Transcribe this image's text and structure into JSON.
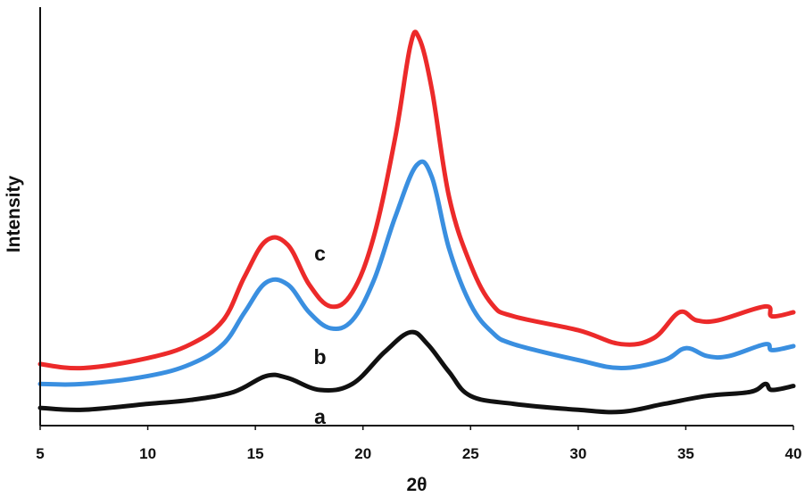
{
  "chart_data": {
    "type": "line",
    "xlabel": "2θ",
    "ylabel": "Intensity",
    "xlim": [
      5,
      40
    ],
    "ylim": [
      0,
      100
    ],
    "xticks": [
      "5",
      "10",
      "15",
      "20",
      "25",
      "30",
      "35",
      "40"
    ],
    "yticks_shown": false,
    "grid": false,
    "series": [
      {
        "name": "a",
        "color": "#111111",
        "points": [
          [
            5,
            2
          ],
          [
            7,
            1.5
          ],
          [
            10,
            3
          ],
          [
            12,
            4
          ],
          [
            14,
            6
          ],
          [
            15.5,
            10
          ],
          [
            16.5,
            9.5
          ],
          [
            18,
            6.5
          ],
          [
            19.5,
            8
          ],
          [
            21,
            16
          ],
          [
            22.2,
            21
          ],
          [
            23,
            18
          ],
          [
            24,
            11
          ],
          [
            25,
            5
          ],
          [
            27,
            3
          ],
          [
            30,
            1.5
          ],
          [
            32,
            1
          ],
          [
            34,
            3
          ],
          [
            36,
            5
          ],
          [
            38,
            6
          ],
          [
            38.7,
            8
          ],
          [
            39,
            6.5
          ],
          [
            40,
            7.5
          ]
        ]
      },
      {
        "name": "b",
        "color": "#3a8fe0",
        "points": [
          [
            5,
            8
          ],
          [
            7,
            8
          ],
          [
            10,
            10
          ],
          [
            12,
            13
          ],
          [
            13.5,
            18
          ],
          [
            14.5,
            26
          ],
          [
            15.5,
            33.5
          ],
          [
            16.5,
            33
          ],
          [
            17.5,
            26
          ],
          [
            18.5,
            22
          ],
          [
            19.5,
            24
          ],
          [
            20.5,
            34
          ],
          [
            21.5,
            50
          ],
          [
            22.5,
            63
          ],
          [
            23.2,
            60
          ],
          [
            24,
            42
          ],
          [
            25,
            28
          ],
          [
            26,
            21
          ],
          [
            27,
            18
          ],
          [
            30,
            14
          ],
          [
            32,
            12
          ],
          [
            34,
            14
          ],
          [
            35,
            17
          ],
          [
            36,
            15
          ],
          [
            37,
            15
          ],
          [
            38.7,
            18
          ],
          [
            39,
            16.5
          ],
          [
            40,
            17.5
          ]
        ]
      },
      {
        "name": "c",
        "color": "#ec2a2a",
        "points": [
          [
            5,
            13
          ],
          [
            7,
            12
          ],
          [
            10,
            14.5
          ],
          [
            12,
            18
          ],
          [
            13.5,
            24
          ],
          [
            14.5,
            35
          ],
          [
            15.5,
            44
          ],
          [
            16.5,
            43
          ],
          [
            17.5,
            33
          ],
          [
            18.5,
            27.5
          ],
          [
            19.5,
            31
          ],
          [
            20.5,
            45
          ],
          [
            21.5,
            70
          ],
          [
            22.2,
            93
          ],
          [
            22.6,
            95
          ],
          [
            23.2,
            82
          ],
          [
            24,
            55
          ],
          [
            25,
            38
          ],
          [
            26,
            28
          ],
          [
            27,
            25
          ],
          [
            30,
            21.5
          ],
          [
            32,
            18
          ],
          [
            33.5,
            19.5
          ],
          [
            34.7,
            26
          ],
          [
            35.5,
            24
          ],
          [
            36.5,
            24
          ],
          [
            38.7,
            27.5
          ],
          [
            39,
            25
          ],
          [
            40,
            26
          ]
        ]
      }
    ],
    "annotations": [
      {
        "text": "a",
        "x": 18,
        "y": -2
      },
      {
        "text": "b",
        "x": 18,
        "y": 13
      },
      {
        "text": "c",
        "x": 18,
        "y": 39
      }
    ]
  }
}
